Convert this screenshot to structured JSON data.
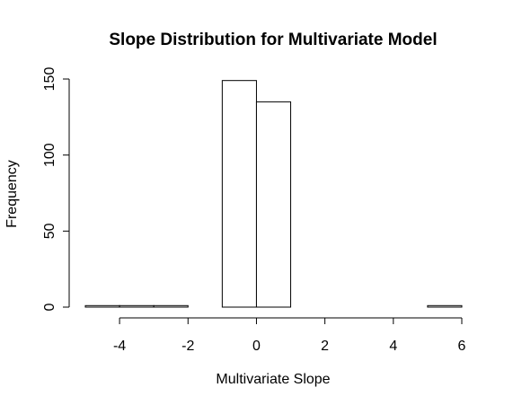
{
  "chart_data": {
    "type": "bar",
    "title": "Slope Distribution for Multivariate Model",
    "xlabel": "Multivariate Slope",
    "ylabel": "Frequency",
    "bins": [
      {
        "start": -5,
        "end": -4,
        "count": 1
      },
      {
        "start": -4,
        "end": -3,
        "count": 1
      },
      {
        "start": -3,
        "end": -2,
        "count": 1
      },
      {
        "start": -2,
        "end": -1,
        "count": 0
      },
      {
        "start": -1,
        "end": 0,
        "count": 149
      },
      {
        "start": 0,
        "end": 1,
        "count": 135
      },
      {
        "start": 1,
        "end": 2,
        "count": 0
      },
      {
        "start": 2,
        "end": 3,
        "count": 0
      },
      {
        "start": 3,
        "end": 4,
        "count": 0
      },
      {
        "start": 4,
        "end": 5,
        "count": 0
      },
      {
        "start": 5,
        "end": 6,
        "count": 1
      }
    ],
    "xticks": [
      -4,
      -2,
      0,
      2,
      4,
      6
    ],
    "yticks": [
      0,
      50,
      100,
      150
    ],
    "xlim": [
      -5,
      6
    ],
    "ylim": [
      0,
      150
    ],
    "grid": false,
    "legend": "none"
  }
}
